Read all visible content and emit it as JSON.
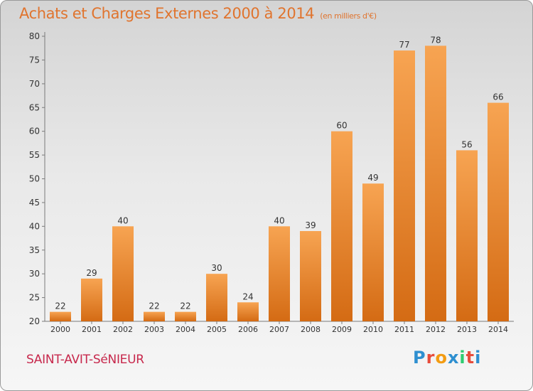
{
  "header": {
    "title": "Achats et Charges Externes 2000 à 2014",
    "subtitle": "(en milliers d'€)"
  },
  "footer": {
    "commune": "SAINT-AVIT-SéNIEUR"
  },
  "logo": {
    "text": "Proxiti",
    "letters": [
      "P",
      "r",
      "o",
      "x",
      "i",
      "t",
      "i"
    ],
    "colors": [
      "#2e8fd0",
      "#e74c3c",
      "#f39c12",
      "#2e8fd0",
      "#2ecc71",
      "#e74c3c",
      "#2e8fd0"
    ]
  },
  "colors": {
    "bar_light": "#f7a452",
    "bar_dark": "#d46b14",
    "accent": "#e0742e"
  },
  "chart_data": {
    "type": "bar",
    "title": "Achats et Charges Externes 2000 à 2014",
    "subtitle": "(en milliers d'€)",
    "categories": [
      "2000",
      "2001",
      "2002",
      "2003",
      "2004",
      "2005",
      "2006",
      "2007",
      "2008",
      "2009",
      "2010",
      "2011",
      "2012",
      "2013",
      "2014"
    ],
    "values": [
      22,
      29,
      40,
      22,
      22,
      30,
      24,
      40,
      39,
      60,
      49,
      77,
      78,
      56,
      66
    ],
    "ylim": [
      20,
      80
    ],
    "yticks": [
      20,
      25,
      30,
      35,
      40,
      45,
      50,
      55,
      60,
      65,
      70,
      75,
      80
    ],
    "grid": false,
    "legend": "none"
  }
}
